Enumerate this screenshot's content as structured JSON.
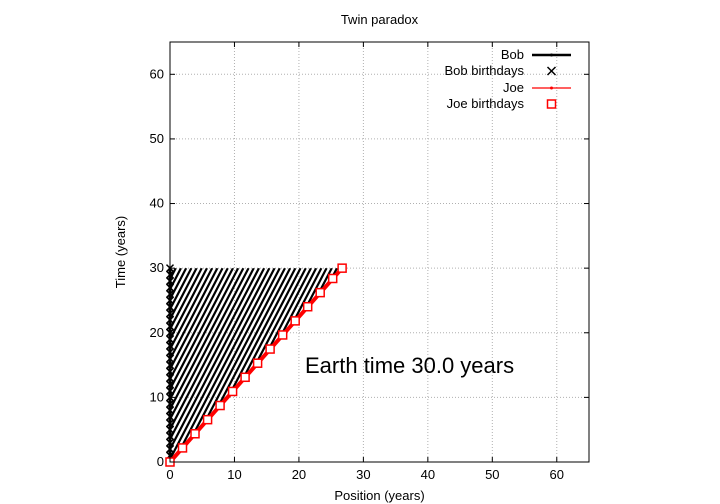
{
  "chart_data": {
    "type": "line",
    "title": "Twin paradox",
    "xlabel": "Position (years)",
    "ylabel": "Time (years)",
    "xlim": [
      0,
      65
    ],
    "ylim": [
      0,
      65
    ],
    "xticks": [
      0,
      10,
      20,
      30,
      40,
      50,
      60
    ],
    "yticks": [
      0,
      10,
      20,
      30,
      40,
      50,
      60
    ],
    "grid": true,
    "legend_position": "top-right",
    "annotation": "Earth time 30.0 years",
    "velocity": 0.889,
    "series": [
      {
        "name": "Bob",
        "color": "#000000",
        "x": [
          0,
          0
        ],
        "y": [
          0,
          30
        ]
      },
      {
        "name": "Bob birthdays",
        "color": "#000000",
        "marker": "x",
        "x": [
          0,
          0,
          0,
          0,
          0,
          0,
          0,
          0,
          0,
          0,
          0,
          0,
          0,
          0,
          0,
          0,
          0,
          0,
          0,
          0,
          0,
          0,
          0,
          0,
          0,
          0,
          0,
          0,
          0,
          0,
          0
        ],
        "y": [
          0,
          1,
          2,
          3,
          4,
          5,
          6,
          7,
          8,
          9,
          10,
          11,
          12,
          13,
          14,
          15,
          16,
          17,
          18,
          19,
          20,
          21,
          22,
          23,
          24,
          25,
          26,
          27,
          28,
          29,
          30
        ]
      },
      {
        "name": "Joe",
        "color": "#ff0000",
        "x": [
          0,
          26.7
        ],
        "y": [
          0,
          30
        ]
      },
      {
        "name": "Joe birthdays",
        "color": "#ff0000",
        "marker": "square",
        "x": [
          0,
          1.94,
          3.88,
          5.83,
          7.77,
          9.71,
          11.65,
          13.59,
          15.53,
          17.48,
          19.42,
          21.36,
          23.3,
          25.24,
          26.7
        ],
        "y": [
          0,
          2.18,
          4.37,
          6.55,
          8.74,
          10.92,
          13.11,
          15.29,
          17.48,
          19.66,
          21.84,
          24.03,
          26.21,
          28.4,
          30.0
        ]
      }
    ]
  }
}
